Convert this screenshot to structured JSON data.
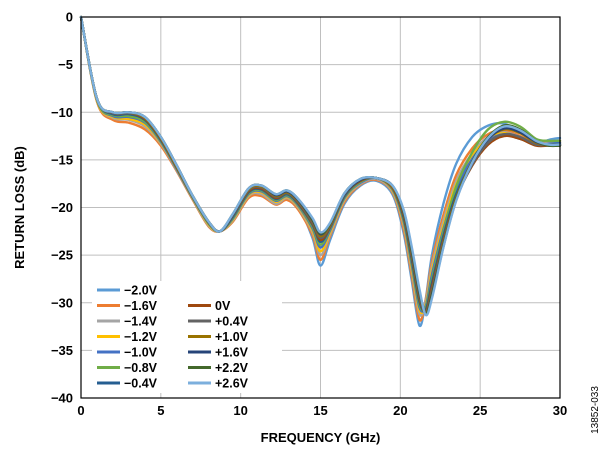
{
  "figure_id": "13852-033",
  "chart_data": {
    "type": "line",
    "xlabel": "FREQUENCY (GHz)",
    "ylabel": "RETURN LOSS (dB)",
    "xlim": [
      0,
      30
    ],
    "ylim": [
      -40,
      0
    ],
    "x_ticks": [
      "0",
      "5",
      "10",
      "15",
      "20",
      "25",
      "30"
    ],
    "y_ticks": [
      "0",
      "−5",
      "−10",
      "−15",
      "−20",
      "−25",
      "−30",
      "−35",
      "−40"
    ],
    "grid": true,
    "legend_position": "bottom-left",
    "x": [
      0,
      1,
      2,
      3,
      4,
      5,
      6,
      7,
      8,
      8.7,
      9.5,
      10.5,
      11.3,
      12.2,
      12.9,
      13.6,
      14.5,
      15,
      15.6,
      16.5,
      17.5,
      18.5,
      19.5,
      20.2,
      20.7,
      21.2,
      21.6,
      22,
      22.7,
      23.5,
      24.5,
      25.5,
      26.5,
      27.5,
      28.5,
      29.3,
      30
    ],
    "series": [
      {
        "name": "−2.0V",
        "color": "#5b9bd5",
        "values": [
          0,
          -8.6,
          -10.3,
          -10.2,
          -10.8,
          -13,
          -15.9,
          -19,
          -21.8,
          -22.5,
          -21.2,
          -18.6,
          -18.3,
          -19.4,
          -18.8,
          -19.8,
          -23.2,
          -26.1,
          -23.4,
          -19.6,
          -17.7,
          -17.2,
          -18.6,
          -22.6,
          -27.5,
          -32.4,
          -29.5,
          -24.8,
          -19.6,
          -15.4,
          -12.6,
          -11.4,
          -11.2,
          -12.1,
          -13.3,
          -12.9,
          -12.7
        ]
      },
      {
        "name": "−1.6V",
        "color": "#ed7d31",
        "values": [
          0,
          -8.9,
          -10.8,
          -11.1,
          -11.8,
          -13.5,
          -16.2,
          -19.2,
          -22,
          -22.5,
          -21.5,
          -19,
          -18.8,
          -19.7,
          -19.2,
          -20.2,
          -22.9,
          -25.5,
          -23,
          -19.4,
          -17.6,
          -17.1,
          -18.4,
          -22.2,
          -27,
          -31.8,
          -29.6,
          -25.5,
          -20.8,
          -16.6,
          -13.8,
          -12.3,
          -11.9,
          -12.5,
          -13.3,
          -13.1,
          -13
        ]
      },
      {
        "name": "−1.4V",
        "color": "#a5a5a5",
        "values": [
          0,
          -8.8,
          -10.6,
          -10.8,
          -11.5,
          -13.3,
          -16.1,
          -19.1,
          -21.9,
          -22.5,
          -21.4,
          -18.8,
          -18.6,
          -19.6,
          -19,
          -20,
          -22.6,
          -25,
          -22.8,
          -19.2,
          -17.5,
          -17,
          -18.3,
          -21.8,
          -26.5,
          -31.2,
          -29.8,
          -26,
          -21.4,
          -17.2,
          -14.3,
          -12.6,
          -12.1,
          -12.6,
          -13.4,
          -13.2,
          -13.1
        ]
      },
      {
        "name": "−1.2V",
        "color": "#ffc000",
        "values": [
          0,
          -8.8,
          -10.5,
          -10.7,
          -11.3,
          -13.2,
          -16,
          -19,
          -21.8,
          -22.5,
          -21.3,
          -18.7,
          -18.4,
          -19.4,
          -18.9,
          -19.9,
          -22.4,
          -24.6,
          -22.6,
          -19.1,
          -17.4,
          -16.9,
          -18.2,
          -21.6,
          -26.2,
          -30.8,
          -30.1,
          -26.5,
          -21.9,
          -17.6,
          -14.6,
          -12.8,
          -12.2,
          -12.7,
          -13.4,
          -13.3,
          -13.2
        ]
      },
      {
        "name": "−1.0V",
        "color": "#4472c4",
        "values": [
          0,
          -8.7,
          -10.4,
          -10.5,
          -11.1,
          -13.1,
          -16,
          -19,
          -21.7,
          -22.5,
          -21.2,
          -18.6,
          -18.3,
          -19.3,
          -18.8,
          -19.8,
          -22.2,
          -24.2,
          -22.4,
          -19,
          -17.4,
          -16.9,
          -18.1,
          -21.4,
          -25.9,
          -30.5,
          -30.3,
          -26.9,
          -22.3,
          -18,
          -14.9,
          -13,
          -12.3,
          -12.7,
          -13.4,
          -13.3,
          -13.2
        ]
      },
      {
        "name": "−0.8V",
        "color": "#70ad47",
        "values": [
          0,
          -8.7,
          -10.3,
          -10.4,
          -11,
          -13,
          -15.9,
          -19,
          -21.7,
          -22.5,
          -21.1,
          -18.5,
          -18.2,
          -19.2,
          -18.7,
          -19.7,
          -22,
          -23.9,
          -22.2,
          -18.9,
          -17.3,
          -16.9,
          -18,
          -21.2,
          -25.6,
          -30.2,
          -30.5,
          -27.4,
          -22.6,
          -17.8,
          -14.2,
          -11.8,
          -11,
          -11.5,
          -12.8,
          -13,
          -13
        ]
      },
      {
        "name": "−0.4V",
        "color": "#255e91",
        "values": [
          0,
          -8.6,
          -10.2,
          -10.2,
          -10.8,
          -12.9,
          -15.8,
          -18.9,
          -21.6,
          -22.5,
          -21,
          -18.4,
          -18.1,
          -19.1,
          -18.6,
          -19.6,
          -21.8,
          -23.6,
          -22.1,
          -18.8,
          -17.2,
          -16.9,
          -17.9,
          -21,
          -25.3,
          -29.9,
          -30.7,
          -27.8,
          -23,
          -18.6,
          -15.3,
          -13.2,
          -12.4,
          -12.8,
          -13.4,
          -13.4,
          -13.3
        ]
      },
      {
        "name": "0V",
        "color": "#9e480e",
        "values": [
          0,
          -8.6,
          -10.1,
          -10.1,
          -10.7,
          -12.8,
          -15.8,
          -18.9,
          -21.6,
          -22.5,
          -20.9,
          -18.3,
          -18,
          -19,
          -18.5,
          -19.5,
          -21.7,
          -23.4,
          -22,
          -18.7,
          -17.2,
          -16.9,
          -17.9,
          -20.8,
          -25,
          -29.6,
          -30.9,
          -28.2,
          -23.4,
          -19,
          -15.6,
          -13.4,
          -12.5,
          -12.8,
          -13.5,
          -13.5,
          -13.4
        ]
      },
      {
        "name": "+0.4V",
        "color": "#636363",
        "values": [
          0,
          -8.6,
          -10.1,
          -10.1,
          -10.6,
          -12.7,
          -15.7,
          -18.9,
          -21.6,
          -22.5,
          -20.9,
          -18.2,
          -17.9,
          -18.9,
          -18.5,
          -19.4,
          -21.6,
          -23.2,
          -21.9,
          -18.7,
          -17.1,
          -16.9,
          -17.8,
          -20.6,
          -24.8,
          -29.4,
          -31,
          -28.5,
          -23.6,
          -19.1,
          -15.5,
          -13.2,
          -12.3,
          -12.6,
          -13.4,
          -13.4,
          -13.4
        ]
      },
      {
        "name": "+1.0V",
        "color": "#997300",
        "values": [
          0,
          -8.6,
          -10,
          -10,
          -10.6,
          -12.7,
          -15.7,
          -18.8,
          -21.5,
          -22.5,
          -20.8,
          -18.1,
          -17.8,
          -18.8,
          -18.4,
          -19.3,
          -21.4,
          -23,
          -21.8,
          -18.6,
          -17.1,
          -16.9,
          -17.8,
          -20.5,
          -24.6,
          -29.2,
          -31.1,
          -28.8,
          -23.8,
          -19,
          -15.2,
          -12.8,
          -11.8,
          -12.2,
          -13.2,
          -13.5,
          -13.5
        ]
      },
      {
        "name": "+1.6V",
        "color": "#264478",
        "values": [
          0,
          -8.6,
          -10,
          -10,
          -10.5,
          -12.6,
          -15.6,
          -18.8,
          -21.5,
          -22.5,
          -20.8,
          -18,
          -17.7,
          -18.7,
          -18.3,
          -19.2,
          -21.3,
          -22.8,
          -21.7,
          -18.6,
          -17.1,
          -16.9,
          -17.7,
          -20.4,
          -24.4,
          -29,
          -31.2,
          -29,
          -24,
          -19.2,
          -15.3,
          -12.8,
          -11.7,
          -12.1,
          -13.1,
          -13.5,
          -13.5
        ]
      },
      {
        "name": "+2.2V",
        "color": "#43682b",
        "values": [
          0,
          -8.6,
          -10,
          -10,
          -10.5,
          -12.6,
          -15.6,
          -18.8,
          -21.5,
          -22.5,
          -20.7,
          -18,
          -17.7,
          -18.6,
          -18.2,
          -19.1,
          -21.2,
          -22.7,
          -21.7,
          -18.5,
          -17,
          -16.9,
          -17.7,
          -20.3,
          -24.2,
          -28.8,
          -31.2,
          -29.2,
          -24.1,
          -19.2,
          -15.2,
          -12.6,
          -11.4,
          -11.8,
          -13,
          -13.5,
          -13.5
        ]
      },
      {
        "name": "+2.6V",
        "color": "#7cafdd",
        "values": [
          0,
          -8.6,
          -10,
          -10,
          -10.5,
          -12.6,
          -15.6,
          -18.8,
          -21.5,
          -22.5,
          -20.7,
          -18,
          -17.7,
          -18.6,
          -18.2,
          -19.1,
          -21.1,
          -22.6,
          -21.6,
          -18.5,
          -17,
          -16.9,
          -17.7,
          -20.2,
          -24,
          -28.6,
          -31.3,
          -29.4,
          -24.2,
          -19.3,
          -15.3,
          -12.7,
          -11.5,
          -11.9,
          -13,
          -13.4,
          -13.4
        ]
      }
    ]
  }
}
